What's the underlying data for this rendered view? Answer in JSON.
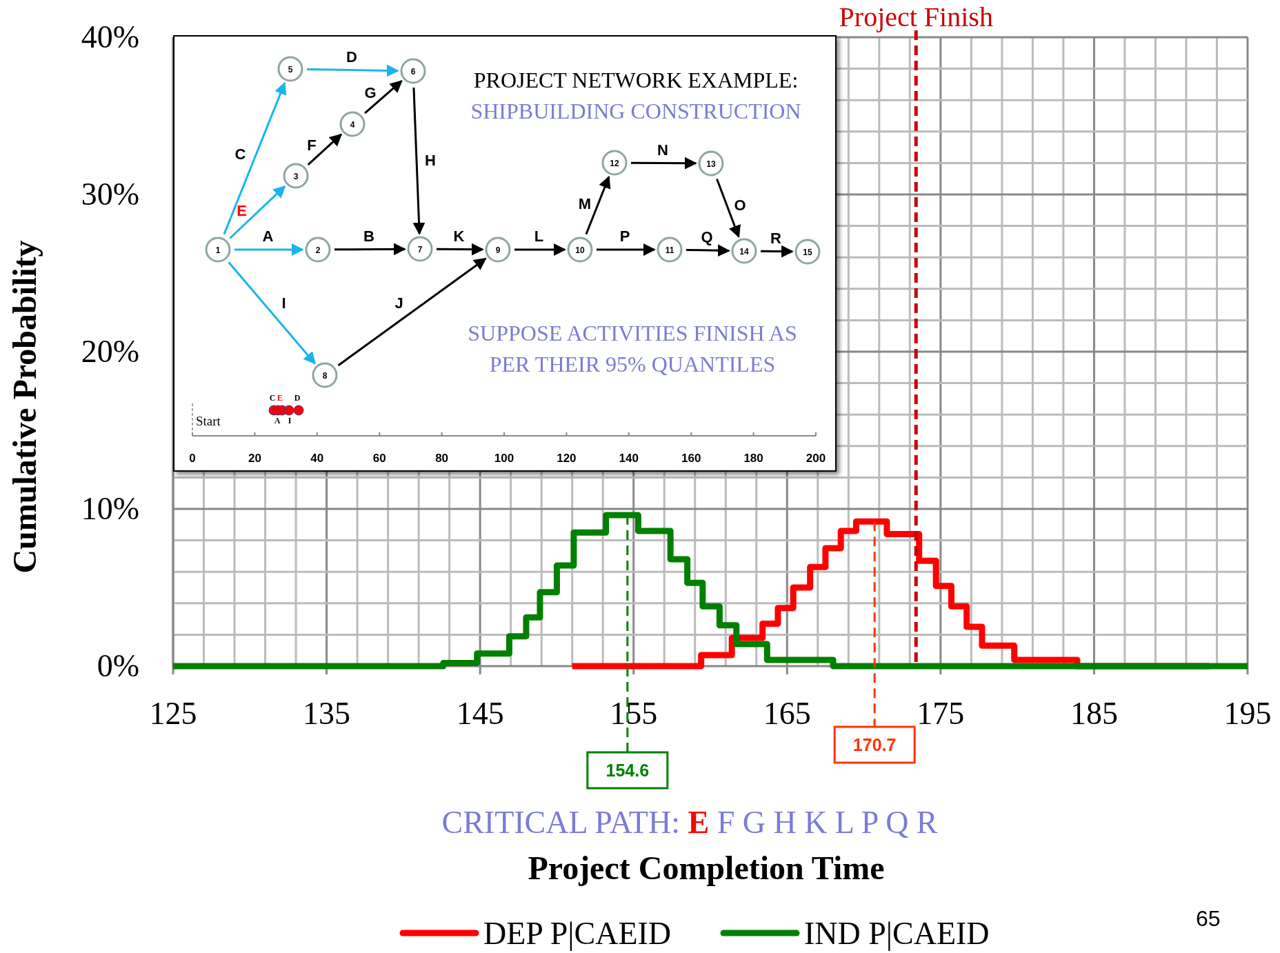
{
  "chart_data": {
    "type": "step",
    "xlabel": "Project Completion Time",
    "ylabel": "Cumulative Probability",
    "xlim": [
      125,
      195
    ],
    "xticks": [
      125,
      {
        "value": 127,
        "label": null
      },
      {
        "value": 129,
        "label": null
      },
      {
        "value": 131,
        "label": null
      },
      {
        "value": 133,
        "label": null
      },
      135,
      {
        "value": 137,
        "label": null
      },
      {
        "value": 139,
        "label": null
      },
      {
        "value": 141,
        "label": null
      },
      {
        "value": 143,
        "label": null
      },
      145,
      {
        "value": 147,
        "label": null
      },
      {
        "value": 149,
        "label": null
      },
      {
        "value": 151,
        "label": null
      },
      {
        "value": 153,
        "label": null
      },
      155,
      {
        "value": 157,
        "label": null
      },
      {
        "value": 159,
        "label": null
      },
      {
        "value": 161,
        "label": null
      },
      {
        "value": 163,
        "label": null
      },
      165,
      {
        "value": 167,
        "label": null
      },
      {
        "value": 169,
        "label": null
      },
      {
        "value": 171,
        "label": null
      },
      {
        "value": 173,
        "label": null
      },
      175,
      {
        "value": 177,
        "label": null
      },
      {
        "value": 179,
        "label": null
      },
      {
        "value": 181,
        "label": null
      },
      {
        "value": 183,
        "label": null
      },
      185,
      {
        "value": 187,
        "label": null
      },
      {
        "value": 189,
        "label": null
      },
      {
        "value": 191,
        "label": null
      },
      {
        "value": 193,
        "label": null
      },
      195
    ],
    "ylim": [
      0,
      40
    ],
    "yticks": [
      {
        "value": 0,
        "label": "0%"
      },
      {
        "value": 2,
        "label": null
      },
      {
        "value": 4,
        "label": null
      },
      {
        "value": 6,
        "label": null
      },
      {
        "value": 8,
        "label": null
      },
      {
        "value": 10,
        "label": "10%"
      },
      {
        "value": 12,
        "label": null
      },
      {
        "value": 14,
        "label": null
      },
      {
        "value": 16,
        "label": null
      },
      {
        "value": 18,
        "label": null
      },
      {
        "value": 20,
        "label": "20%"
      },
      {
        "value": 22,
        "label": null
      },
      {
        "value": 24,
        "label": null
      },
      {
        "value": 26,
        "label": null
      },
      {
        "value": 28,
        "label": null
      },
      {
        "value": 30,
        "label": "30%"
      },
      {
        "value": 32,
        "label": null
      },
      {
        "value": 34,
        "label": null
      },
      {
        "value": 36,
        "label": null
      },
      {
        "value": 38,
        "label": null
      },
      {
        "value": 40,
        "label": "40%"
      }
    ],
    "grid": true,
    "legend": "bottom",
    "line_style": "solid",
    "series": [
      {
        "name": "DEP P|CAEID",
        "color": "#ff0000",
        "x": [
          151,
          159.4,
          161.4,
          163.4,
          164.4,
          165.4,
          166.5,
          167.5,
          168.5,
          169.5,
          171.5,
          173.6,
          174.7,
          175.7,
          176.7,
          177.7,
          179.8,
          183.9,
          192.5
        ],
        "values": [
          0,
          0.7,
          1.8,
          2.7,
          3.7,
          5.0,
          6.3,
          7.5,
          8.6,
          9.2,
          8.4,
          6.7,
          5.1,
          3.8,
          2.5,
          1.3,
          0.4,
          0,
          0
        ]
      },
      {
        "name": "IND P|CAEID",
        "color": "#008000",
        "x": [
          125,
          142.6,
          144.8,
          146.9,
          148.0,
          148.9,
          150.0,
          151.1,
          153.2,
          155.3,
          157.4,
          158.5,
          159.5,
          160.6,
          161.7,
          163.7,
          168.0,
          195
        ],
        "values": [
          0,
          0.2,
          0.8,
          1.9,
          3.1,
          4.7,
          6.4,
          8.5,
          9.6,
          8.6,
          6.8,
          5.3,
          3.8,
          2.6,
          1.4,
          0.4,
          0,
          0
        ]
      }
    ],
    "ref_lines": [
      {
        "axis": "x",
        "value": 173.4,
        "label": "Project Finish",
        "color": "#cc0000",
        "line_style": "dashed"
      },
      {
        "axis": "x",
        "value": 154.6,
        "label": "154.6",
        "color": "#008000",
        "line_style": "dashed"
      },
      {
        "axis": "x",
        "value": 170.7,
        "label": "170.7",
        "color": "#ff3300",
        "line_style": "dashed"
      }
    ],
    "annotations": [
      "PROJECT NETWORK EXAMPLE:",
      "SHIPBUILDING CONSTRUCTION",
      "SUPPOSE ACTIVITIES FINISH AS",
      "PER THEIR 95% QUANTILES",
      "CRITICAL PATH:",
      "E",
      "F G H K L P Q R",
      "65",
      "Start",
      "1",
      "2",
      "3",
      "4",
      "5",
      "6",
      "7",
      "8",
      "9",
      "10",
      "11",
      "12",
      "13",
      "14",
      "15",
      "A",
      "B",
      "C",
      "D",
      "E",
      "F",
      "G",
      "H",
      "I",
      "J",
      "K",
      "L",
      "M",
      "N",
      "O",
      "P",
      "Q",
      "R",
      "0",
      "20",
      "40",
      "60",
      "80",
      "100",
      "120",
      "140",
      "160",
      "180",
      "200",
      "C",
      "E",
      "D",
      "A",
      "I"
    ]
  }
}
